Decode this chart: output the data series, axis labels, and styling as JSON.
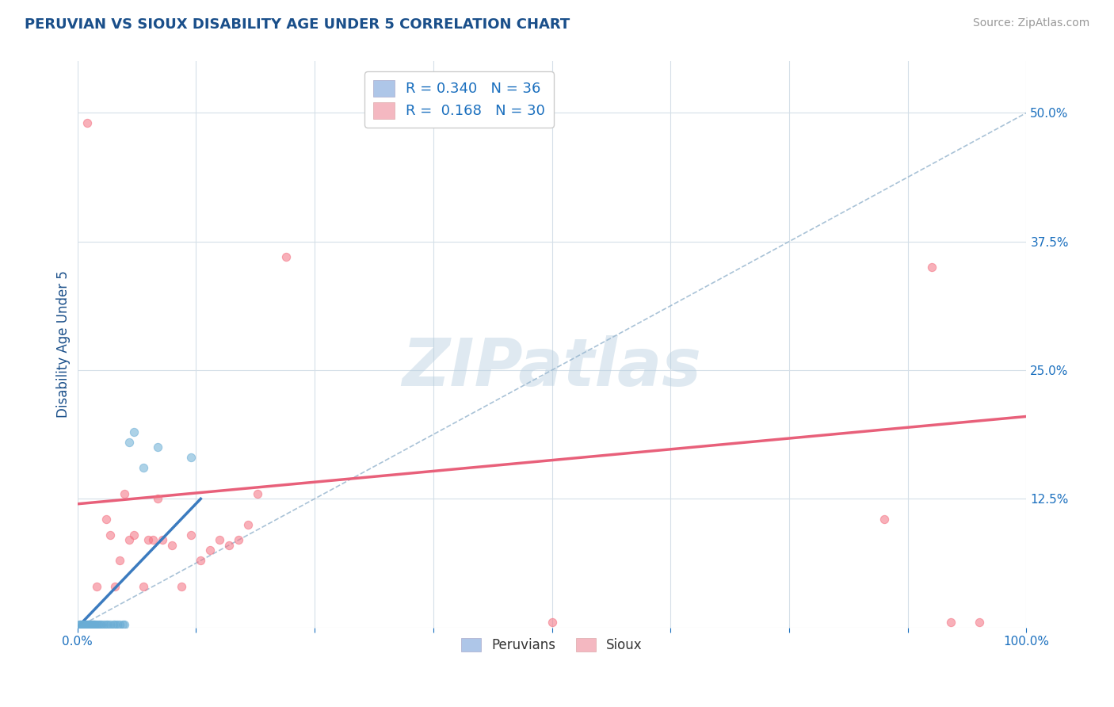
{
  "title": "PERUVIAN VS SIOUX DISABILITY AGE UNDER 5 CORRELATION CHART",
  "source": "Source: ZipAtlas.com",
  "ylabel": "Disability Age Under 5",
  "xlim": [
    0.0,
    1.0
  ],
  "ylim": [
    0.0,
    0.55
  ],
  "xticks": [
    0.0,
    0.125,
    0.25,
    0.375,
    0.5,
    0.625,
    0.75,
    0.875,
    1.0
  ],
  "xticklabels": [
    "0.0%",
    "",
    "",
    "",
    "",
    "",
    "",
    "",
    "100.0%"
  ],
  "yticks": [
    0.0,
    0.125,
    0.25,
    0.375,
    0.5
  ],
  "yticklabels": [
    "",
    "12.5%",
    "25.0%",
    "37.5%",
    "50.0%"
  ],
  "blue_legend_color": "#aec6e8",
  "pink_legend_color": "#f4b8c1",
  "peruvian_color": "#6aadd5",
  "sioux_color": "#f47080",
  "dashed_line_color": "#9ab8d0",
  "sioux_line_color": "#e8607a",
  "peruvian_line_color": "#3b7bbf",
  "watermark_text": "ZIPatlas",
  "background_color": "#ffffff",
  "grid_color": "#d5dfe8",
  "title_color": "#1a4f8a",
  "tick_label_color": "#1a6fbe",
  "axis_label_color": "#1a4f8a",
  "sioux_x": [
    0.01,
    0.02,
    0.03,
    0.035,
    0.04,
    0.045,
    0.05,
    0.055,
    0.06,
    0.07,
    0.075,
    0.08,
    0.085,
    0.09,
    0.1,
    0.11,
    0.12,
    0.13,
    0.14,
    0.15,
    0.16,
    0.17,
    0.18,
    0.19,
    0.22,
    0.5,
    0.85,
    0.9,
    0.92,
    0.95
  ],
  "sioux_y": [
    0.49,
    0.04,
    0.105,
    0.09,
    0.04,
    0.065,
    0.13,
    0.085,
    0.09,
    0.04,
    0.085,
    0.085,
    0.125,
    0.085,
    0.08,
    0.04,
    0.09,
    0.065,
    0.075,
    0.085,
    0.08,
    0.085,
    0.1,
    0.13,
    0.36,
    0.005,
    0.105,
    0.35,
    0.005,
    0.005
  ],
  "sioux_line_x": [
    0.0,
    1.0
  ],
  "sioux_line_y": [
    0.12,
    0.205
  ],
  "peruvian_x": [
    0.002,
    0.003,
    0.004,
    0.005,
    0.006,
    0.007,
    0.008,
    0.009,
    0.01,
    0.011,
    0.012,
    0.013,
    0.015,
    0.016,
    0.017,
    0.018,
    0.019,
    0.02,
    0.022,
    0.024,
    0.025,
    0.028,
    0.03,
    0.032,
    0.035,
    0.038,
    0.04,
    0.042,
    0.045,
    0.048,
    0.05,
    0.055,
    0.06,
    0.07,
    0.085,
    0.12
  ],
  "peruvian_y": [
    0.003,
    0.003,
    0.003,
    0.003,
    0.003,
    0.003,
    0.003,
    0.003,
    0.003,
    0.003,
    0.003,
    0.003,
    0.003,
    0.003,
    0.003,
    0.003,
    0.003,
    0.003,
    0.003,
    0.003,
    0.003,
    0.003,
    0.003,
    0.003,
    0.003,
    0.003,
    0.003,
    0.003,
    0.003,
    0.003,
    0.003,
    0.18,
    0.19,
    0.155,
    0.175,
    0.165
  ],
  "peruvian_line_x": [
    0.0,
    0.13
  ],
  "peruvian_line_y": [
    0.0,
    0.125
  ],
  "diag_line_x": [
    0.0,
    1.0
  ],
  "diag_line_y": [
    0.0,
    0.5
  ],
  "scatter_size": 55
}
